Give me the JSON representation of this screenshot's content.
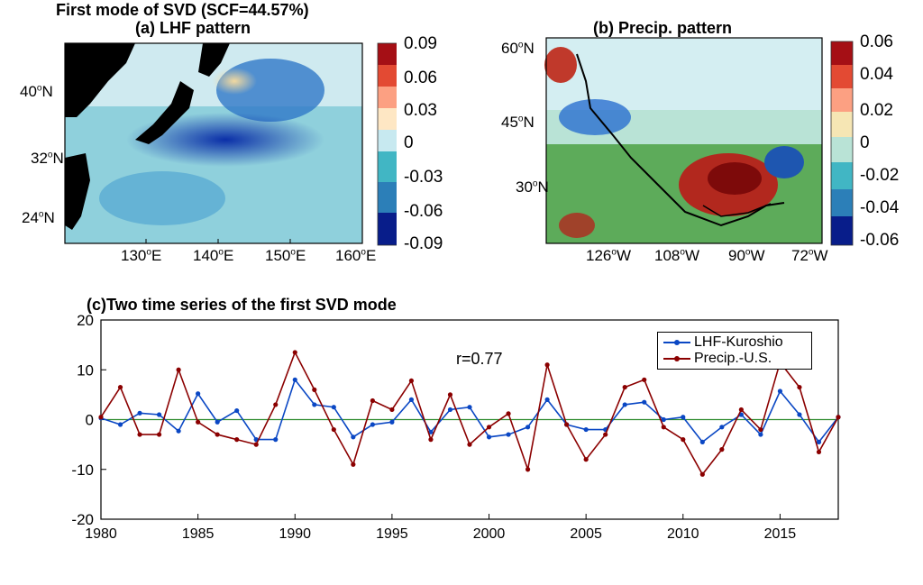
{
  "figure": {
    "main_title": "First mode of SVD (SCF=44.57%)"
  },
  "panel_a": {
    "title": "(a) LHF pattern",
    "lat_ticks": [
      "40",
      "32",
      "24"
    ],
    "lon_ticks": [
      "130",
      "140",
      "150",
      "160"
    ],
    "lat_hemi": "N",
    "lon_hemi": "E",
    "colorbar_ticks": [
      "0.09",
      "0.06",
      "0.03",
      "0",
      "-0.03",
      "-0.06",
      "-0.09"
    ]
  },
  "panel_b": {
    "title": "(b) Precip. pattern",
    "lat_ticks": [
      "60",
      "45",
      "30"
    ],
    "lon_ticks": [
      "126",
      "108",
      "90",
      "72"
    ],
    "lat_hemi": "N",
    "lon_hemi": "W",
    "colorbar_ticks": [
      "0.06",
      "0.04",
      "0.02",
      "0",
      "-0.02",
      "-0.04",
      "-0.06"
    ]
  },
  "chart_data": {
    "type": "line",
    "title": "(c)Two time series of the first SVD mode",
    "annotation": "r=0.77",
    "xlim": [
      1980,
      2018
    ],
    "ylim": [
      -20,
      20
    ],
    "x_ticks": [
      1980,
      1985,
      1990,
      1995,
      2000,
      2005,
      2010,
      2015
    ],
    "y_ticks": [
      20,
      10,
      0,
      -10,
      -20
    ],
    "grid": false,
    "legend_position": "top-right",
    "x": [
      1980,
      1981,
      1982,
      1983,
      1984,
      1985,
      1986,
      1987,
      1988,
      1989,
      1990,
      1991,
      1992,
      1993,
      1994,
      1995,
      1996,
      1997,
      1998,
      1999,
      2000,
      2001,
      2002,
      2003,
      2004,
      2005,
      2006,
      2007,
      2008,
      2009,
      2010,
      2011,
      2012,
      2013,
      2014,
      2015,
      2016,
      2017,
      2018
    ],
    "series": [
      {
        "name": "LHF-Kuroshio",
        "color": "#0a47c4",
        "values": [
          0.3,
          -1,
          1.3,
          1,
          -2.3,
          5.2,
          -0.5,
          1.8,
          -4,
          -4,
          8,
          3,
          2.5,
          -3.5,
          -1,
          -0.5,
          4,
          -2.5,
          2,
          2.5,
          -3.5,
          -3,
          -1.5,
          4,
          -1,
          -2,
          -2,
          3,
          3.5,
          0,
          0.5,
          -4.5,
          -1.5,
          1,
          -3,
          5.7,
          1,
          -4.5,
          0.5
        ]
      },
      {
        "name": "Precip.-U.S.",
        "color": "#8b0000",
        "values": [
          0.5,
          6.5,
          -3,
          -3,
          10,
          -0.5,
          -3,
          -4,
          -5,
          3,
          13.5,
          6,
          -2,
          -9,
          3.8,
          2,
          7.8,
          -4,
          5,
          -5,
          -1.5,
          1.2,
          -10,
          11,
          -1,
          -8,
          -3,
          6.5,
          8,
          -1.5,
          -4,
          -11,
          -6,
          2,
          -2,
          11.5,
          6.5,
          -6.5,
          0.5
        ]
      }
    ]
  }
}
